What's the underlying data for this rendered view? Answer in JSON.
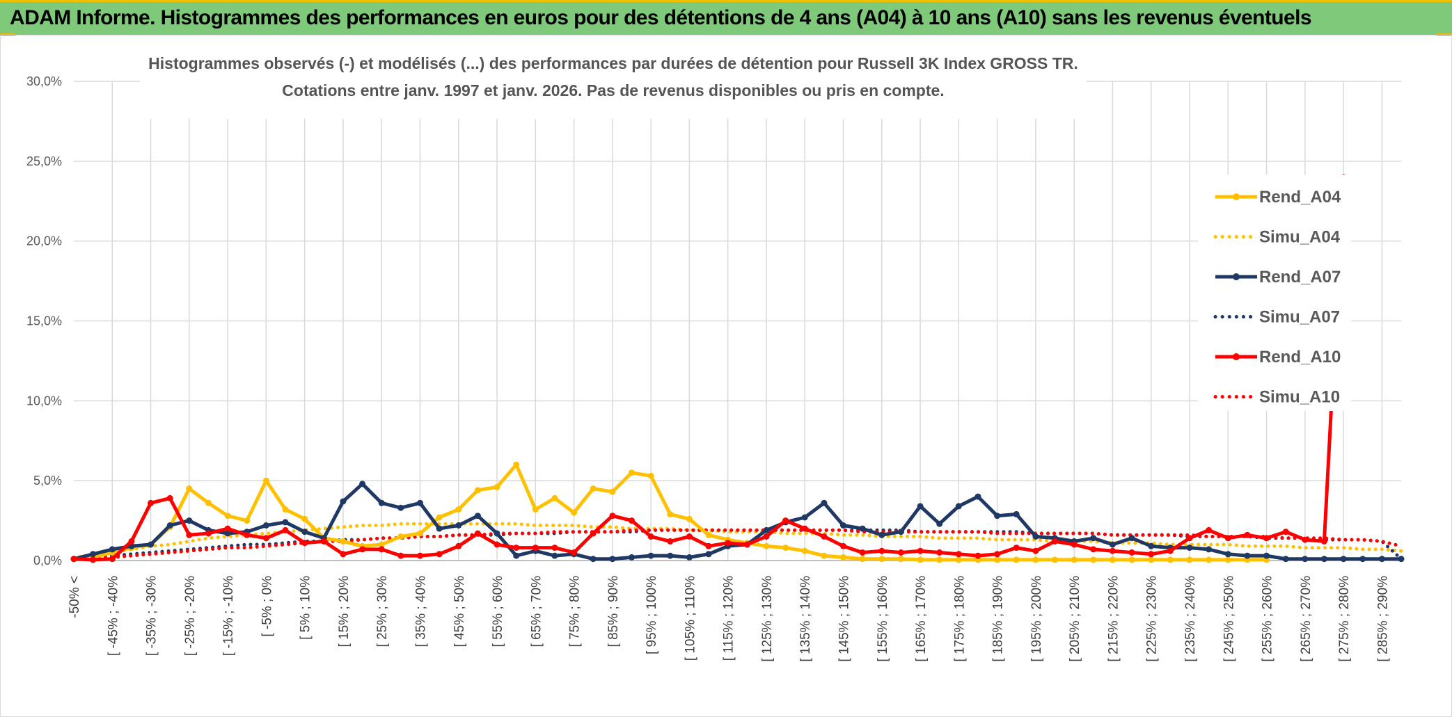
{
  "banner": {
    "title": "ADAM Informe. Histogrammes des performances en euros pour des détentions de 4 ans (A04) à 10 ans (A10) sans les revenus éventuels"
  },
  "colors": {
    "banner_bg": "#7fc97a",
    "A04": "#ffc000",
    "A07": "#1f3864",
    "A10": "#ff0000",
    "grid": "#d9d9d9"
  },
  "chart_data": {
    "type": "line",
    "title": "Histogrammes observés (-) et modélisés (...) des performances par durées de détention pour Russell 3K Index GROSS TR.",
    "subtitle": "Cotations entre janv. 1997 et janv. 2026. Pas de revenus disponibles ou pris en compte.",
    "xlabel": "",
    "ylabel": "",
    "ylim": [
      0,
      30
    ],
    "yticks": [
      "0,0%",
      "5,0%",
      "10,0%",
      "15,0%",
      "20,0%",
      "25,0%",
      "30,0%"
    ],
    "grid": true,
    "legend_position": "right",
    "x_tick_labels": [
      "-50% <",
      "[ -45% ; -40%",
      "[ -35% ; -30%",
      "[ -25% ; -20%",
      "[ -15% ; -10%",
      "[ -5% ; 0%",
      "[ 5% ; 10%",
      "[ 15% ; 20%",
      "[ 25% ; 30%",
      "[ 35% ; 40%",
      "[ 45% ; 50%",
      "[ 55% ; 60%",
      "[ 65% ; 70%",
      "[ 75% ; 80%",
      "[ 85% ; 90%",
      "[ 95% ; 100%",
      "[ 105% ; 110%",
      "[ 115% ; 120%",
      "[ 125% ; 130%",
      "[ 135% ; 140%",
      "[ 145% ; 150%",
      "[ 155% ; 160%",
      "[ 165% ; 170%",
      "[ 175% ; 180%",
      "[ 185% ; 190%",
      "[ 195% ; 200%",
      "[ 205% ; 210%",
      "[ 215% ; 220%",
      "[ 225% ; 230%",
      "[ 235% ; 240%",
      "[ 245% ; 250%",
      "[ 255% ; 260%",
      "[ 265% ; 270%",
      "[ 275% ; 280%",
      "[ 285% ; 290%"
    ],
    "x_count": 70,
    "series": [
      {
        "name": "Rend_A04",
        "style": "solid",
        "color": "#ffc000",
        "values": [
          0.1,
          0.2,
          0.5,
          0.8,
          1.0,
          2.1,
          4.5,
          3.6,
          2.8,
          2.5,
          5.0,
          3.2,
          2.6,
          1.4,
          1.2,
          0.9,
          1.0,
          1.5,
          1.7,
          2.7,
          3.2,
          4.4,
          4.6,
          6.0,
          3.2,
          3.9,
          3.0,
          4.5,
          4.3,
          5.5,
          5.3,
          2.9,
          2.6,
          1.6,
          1.3,
          1.1,
          0.9,
          0.8,
          0.6,
          0.3,
          0.2,
          0.1,
          0.1,
          0.1,
          0.05,
          0.05,
          0.05,
          0.05,
          0.05,
          0.05,
          0.05,
          0.05,
          0.05,
          0.05,
          0.05,
          0.05,
          0.05,
          0.05,
          0.05,
          0.05,
          0.05,
          0.05,
          0.05,
          null,
          null,
          null,
          null,
          null,
          null,
          null
        ]
      },
      {
        "name": "Simu_A04",
        "style": "dotted",
        "color": "#ffc000",
        "values": [
          0.2,
          0.3,
          0.5,
          0.7,
          0.9,
          1.0,
          1.2,
          1.4,
          1.5,
          1.6,
          1.7,
          1.8,
          1.9,
          2.0,
          2.1,
          2.2,
          2.2,
          2.3,
          2.3,
          2.3,
          2.3,
          2.3,
          2.3,
          2.3,
          2.2,
          2.2,
          2.2,
          2.1,
          2.1,
          2.0,
          2.0,
          2.0,
          1.9,
          1.9,
          1.8,
          1.8,
          1.8,
          1.7,
          1.7,
          1.7,
          1.6,
          1.6,
          1.5,
          1.5,
          1.5,
          1.4,
          1.4,
          1.4,
          1.3,
          1.3,
          1.3,
          1.2,
          1.2,
          1.2,
          1.1,
          1.1,
          1.1,
          1.0,
          1.0,
          1.0,
          1.0,
          0.9,
          0.9,
          0.9,
          0.8,
          0.8,
          0.8,
          0.7,
          0.7,
          0.6
        ]
      },
      {
        "name": "Rend_A07",
        "style": "solid",
        "color": "#1f3864",
        "values": [
          0.1,
          0.4,
          0.7,
          0.9,
          1.0,
          2.2,
          2.5,
          1.9,
          1.7,
          1.8,
          2.2,
          2.4,
          1.8,
          1.4,
          3.7,
          4.8,
          3.6,
          3.3,
          3.6,
          2.0,
          2.2,
          2.8,
          1.7,
          0.3,
          0.6,
          0.3,
          0.4,
          0.1,
          0.1,
          0.2,
          0.3,
          0.3,
          0.2,
          0.4,
          0.9,
          1.0,
          1.9,
          2.4,
          2.7,
          3.6,
          2.2,
          2.0,
          1.6,
          1.8,
          3.4,
          2.3,
          3.4,
          4.0,
          2.8,
          2.9,
          1.5,
          1.4,
          1.2,
          1.4,
          1.0,
          1.4,
          0.9,
          0.8,
          0.8,
          0.7,
          0.4,
          0.3,
          0.3,
          0.1,
          0.1,
          0.1,
          0.1,
          0.1,
          0.1,
          0.1
        ]
      },
      {
        "name": "Simu_A07",
        "style": "dotted",
        "color": "#1f3864",
        "values": [
          0.1,
          0.2,
          0.3,
          0.4,
          0.5,
          0.6,
          0.7,
          0.8,
          0.9,
          1.0,
          1.0,
          1.1,
          1.2,
          1.2,
          1.3,
          1.3,
          1.4,
          1.4,
          1.5,
          1.5,
          1.6,
          1.6,
          1.6,
          1.7,
          1.7,
          1.7,
          1.8,
          1.8,
          1.8,
          1.8,
          1.9,
          1.9,
          1.9,
          1.9,
          1.9,
          1.9,
          1.9,
          1.9,
          1.9,
          1.9,
          1.9,
          1.9,
          1.9,
          1.9,
          1.8,
          1.8,
          1.8,
          1.8,
          1.8,
          1.8,
          1.7,
          1.7,
          1.7,
          1.7,
          1.6,
          1.6,
          1.6,
          1.6,
          1.5,
          1.5,
          1.5,
          1.5,
          1.4,
          1.4,
          1.4,
          1.3,
          1.3,
          1.3,
          1.2,
          0.1
        ]
      },
      {
        "name": "Rend_A10",
        "style": "solid",
        "color": "#ff0000",
        "values": [
          0.1,
          0.05,
          0.1,
          1.2,
          3.6,
          3.9,
          1.6,
          1.7,
          2.0,
          1.6,
          1.4,
          1.9,
          1.1,
          1.2,
          0.4,
          0.7,
          0.7,
          0.3,
          0.3,
          0.4,
          0.9,
          1.7,
          1.0,
          0.8,
          0.8,
          0.8,
          0.5,
          1.7,
          2.8,
          2.5,
          1.5,
          1.2,
          1.5,
          0.9,
          1.1,
          1.0,
          1.5,
          2.5,
          2.0,
          1.5,
          0.9,
          0.5,
          0.6,
          0.5,
          0.6,
          0.5,
          0.4,
          0.3,
          0.4,
          0.8,
          0.6,
          1.2,
          1.0,
          0.7,
          0.6,
          0.5,
          0.4,
          0.6,
          1.4,
          1.9,
          1.4,
          1.6,
          1.4,
          1.8,
          1.3,
          1.2,
          24.0,
          null,
          null,
          null
        ]
      },
      {
        "name": "Simu_A10",
        "style": "dotted",
        "color": "#ff0000",
        "values": [
          0.1,
          0.1,
          0.2,
          0.3,
          0.4,
          0.5,
          0.6,
          0.7,
          0.8,
          0.8,
          0.9,
          1.0,
          1.1,
          1.2,
          1.2,
          1.3,
          1.4,
          1.4,
          1.5,
          1.5,
          1.6,
          1.6,
          1.7,
          1.7,
          1.7,
          1.8,
          1.8,
          1.8,
          1.8,
          1.9,
          1.9,
          1.9,
          1.9,
          1.9,
          1.9,
          1.9,
          1.9,
          1.9,
          1.9,
          1.9,
          1.9,
          1.8,
          1.8,
          1.8,
          1.8,
          1.8,
          1.8,
          1.8,
          1.7,
          1.7,
          1.7,
          1.7,
          1.7,
          1.7,
          1.6,
          1.6,
          1.6,
          1.6,
          1.6,
          1.5,
          1.5,
          1.5,
          1.5,
          1.4,
          1.4,
          1.4,
          1.3,
          1.3,
          1.2,
          0.9
        ]
      }
    ]
  }
}
